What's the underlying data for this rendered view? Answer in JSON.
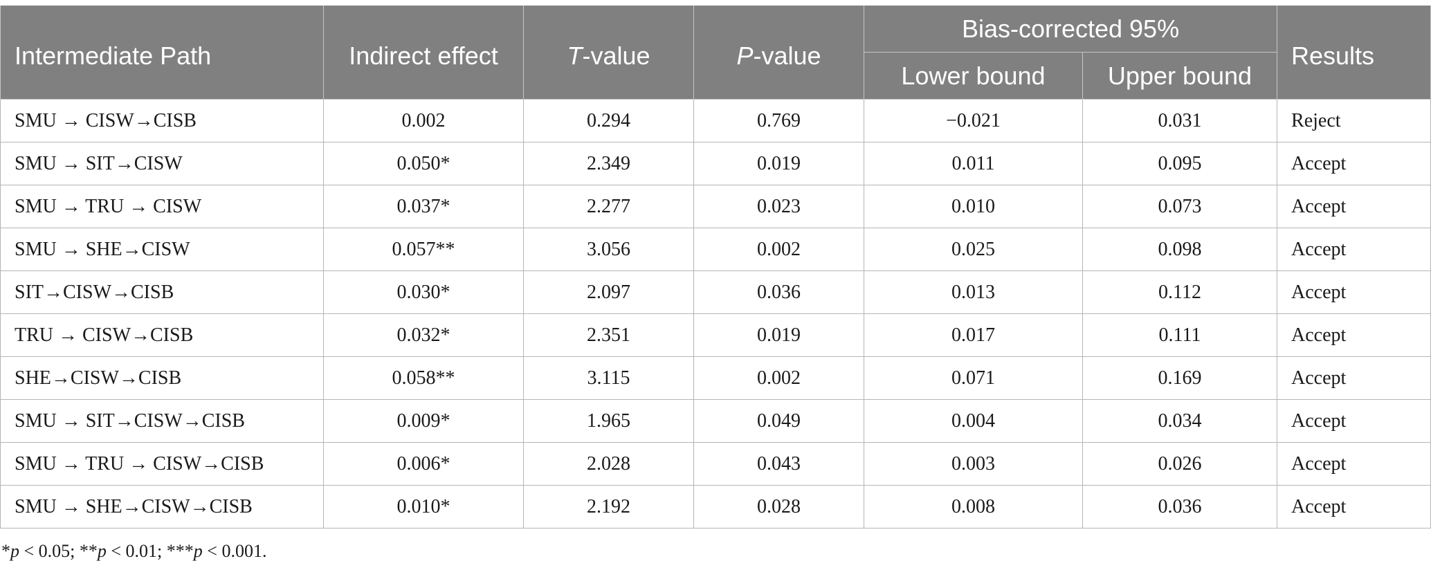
{
  "header": {
    "path": "Intermediate Path",
    "indirect": "Indirect effect",
    "t_label": "T",
    "t_suffix": "-value",
    "p_label": "P",
    "p_suffix": "-value",
    "bias_group": "Bias-corrected 95%",
    "lower": "Lower bound",
    "upper": "Upper bound",
    "results": "Results"
  },
  "rows": [
    {
      "path": "SMU → CISW→CISB",
      "indirect": "0.002",
      "t": "0.294",
      "p": "0.769",
      "lower": "−0.021",
      "upper": "0.031",
      "result": "Reject"
    },
    {
      "path": "SMU → SIT→CISW",
      "indirect": "0.050*",
      "t": "2.349",
      "p": "0.019",
      "lower": "0.011",
      "upper": "0.095",
      "result": "Accept"
    },
    {
      "path": "SMU → TRU → CISW",
      "indirect": "0.037*",
      "t": "2.277",
      "p": "0.023",
      "lower": "0.010",
      "upper": "0.073",
      "result": "Accept"
    },
    {
      "path": "SMU → SHE→CISW",
      "indirect": "0.057**",
      "t": "3.056",
      "p": "0.002",
      "lower": "0.025",
      "upper": "0.098",
      "result": "Accept"
    },
    {
      "path": "SIT→CISW→CISB",
      "indirect": "0.030*",
      "t": "2.097",
      "p": "0.036",
      "lower": "0.013",
      "upper": "0.112",
      "result": "Accept"
    },
    {
      "path": "TRU → CISW→CISB",
      "indirect": "0.032*",
      "t": "2.351",
      "p": "0.019",
      "lower": "0.017",
      "upper": "0.111",
      "result": "Accept"
    },
    {
      "path": "SHE→CISW→CISB",
      "indirect": "0.058**",
      "t": "3.115",
      "p": "0.002",
      "lower": "0.071",
      "upper": "0.169",
      "result": "Accept"
    },
    {
      "path": "SMU → SIT→CISW→CISB",
      "indirect": "0.009*",
      "t": "1.965",
      "p": "0.049",
      "lower": "0.004",
      "upper": "0.034",
      "result": "Accept"
    },
    {
      "path": "SMU → TRU → CISW→CISB",
      "indirect": "0.006*",
      "t": "2.028",
      "p": "0.043",
      "lower": "0.003",
      "upper": "0.026",
      "result": "Accept"
    },
    {
      "path": "SMU → SHE→CISW→CISB",
      "indirect": "0.010*",
      "t": "2.192",
      "p": "0.028",
      "lower": "0.008",
      "upper": "0.036",
      "result": "Accept"
    }
  ],
  "footnote": {
    "a1": "*",
    "p1": "p",
    "b1": " < 0.05; **",
    "p2": "p",
    "b2": " < 0.01; ***",
    "p3": "p",
    "b3": " < 0.001."
  }
}
